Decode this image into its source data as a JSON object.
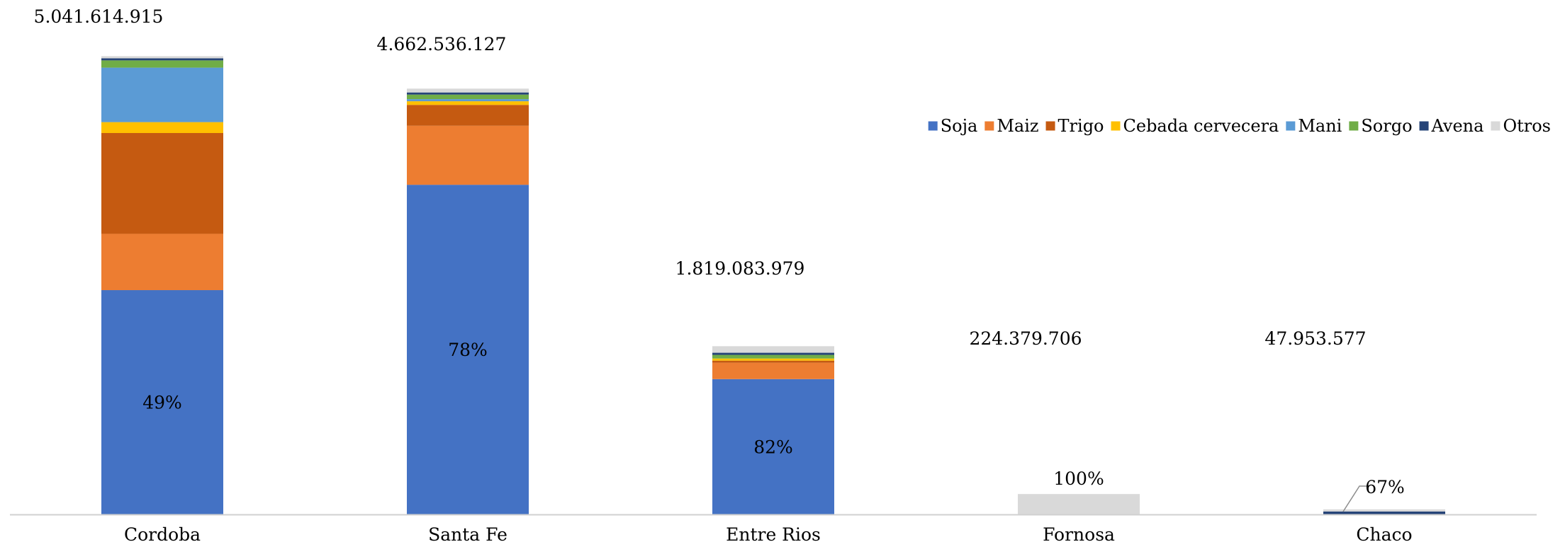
{
  "chart_data": {
    "type": "bar",
    "stacked": true,
    "categories": [
      "Cordoba",
      "Santa Fe",
      "Entre Rios",
      "Fornosa",
      "Chaco"
    ],
    "totals": [
      "5.041.614.915",
      "4.662.536.127",
      "1.819.083.979",
      "224.379.706",
      "47.953.577"
    ],
    "totals_numeric": [
      5041614915,
      4662536127,
      1819083979,
      224379706,
      47953577
    ],
    "series": [
      {
        "name": "Soja",
        "color": "#4472C4",
        "values": [
          2470000000,
          3630000000,
          1490000000,
          0,
          0
        ]
      },
      {
        "name": "Maiz",
        "color": "#ED7D31",
        "values": [
          620000000,
          650000000,
          180000000,
          0,
          0
        ]
      },
      {
        "name": "Trigo",
        "color": "#C55A11",
        "values": [
          1110000000,
          230000000,
          18000000,
          0,
          0
        ]
      },
      {
        "name": "Cebada cervecera",
        "color": "#FFC000",
        "values": [
          120000000,
          40000000,
          9000000,
          0,
          0
        ]
      },
      {
        "name": "Mani",
        "color": "#5B9BD5",
        "values": [
          600000000,
          10000000,
          0,
          0,
          0
        ]
      },
      {
        "name": "Sorgo",
        "color": "#70AD47",
        "values": [
          80000000,
          50000000,
          40000000,
          0,
          0
        ]
      },
      {
        "name": "Avena",
        "color": "#264478",
        "values": [
          20000000,
          10000000,
          10000000,
          0,
          32000000
        ]
      },
      {
        "name": "Otros",
        "color": "#D9D9D9",
        "values": [
          21614915,
          42536127,
          72083979,
          224379706,
          15953577
        ]
      }
    ],
    "data_labels": [
      {
        "category": "Cordoba",
        "series": "Soja",
        "text": "49%"
      },
      {
        "category": "Santa Fe",
        "series": "Soja",
        "text": "78%"
      },
      {
        "category": "Entre Rios",
        "series": "Soja",
        "text": "82%"
      },
      {
        "category": "Fornosa",
        "series": "Otros",
        "text": "100%"
      },
      {
        "category": "Chaco",
        "series": "Avena",
        "text": "67%"
      }
    ],
    "ylim": [
      0,
      5041614915
    ],
    "legend_position": "top-right",
    "grid": false,
    "title": "",
    "xlabel": "",
    "ylabel": ""
  }
}
